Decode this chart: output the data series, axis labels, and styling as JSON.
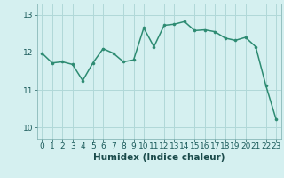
{
  "x": [
    0,
    1,
    2,
    3,
    4,
    5,
    6,
    7,
    8,
    9,
    10,
    11,
    12,
    13,
    14,
    15,
    16,
    17,
    18,
    19,
    20,
    21,
    22,
    23
  ],
  "y": [
    11.98,
    11.72,
    11.75,
    11.68,
    11.25,
    11.72,
    12.1,
    11.98,
    11.75,
    11.8,
    12.65,
    12.15,
    12.72,
    12.75,
    12.82,
    12.58,
    12.6,
    12.55,
    12.38,
    12.32,
    12.4,
    12.15,
    11.12,
    10.22
  ],
  "line_color": "#2d8b72",
  "marker_color": "#2d8b72",
  "bg_color": "#d5f0f0",
  "plot_bg_color": "#d5f0f0",
  "grid_color": "#b0d8d8",
  "xlabel": "Humidex (Indice chaleur)",
  "ylim": [
    9.7,
    13.3
  ],
  "xlim": [
    -0.5,
    23.5
  ],
  "yticks": [
    10,
    11,
    12,
    13
  ],
  "xticks": [
    0,
    1,
    2,
    3,
    4,
    5,
    6,
    7,
    8,
    9,
    10,
    11,
    12,
    13,
    14,
    15,
    16,
    17,
    18,
    19,
    20,
    21,
    22,
    23
  ],
  "tick_fontsize": 6.5,
  "label_fontsize": 7.5,
  "linewidth": 1.1,
  "markersize": 2.2
}
